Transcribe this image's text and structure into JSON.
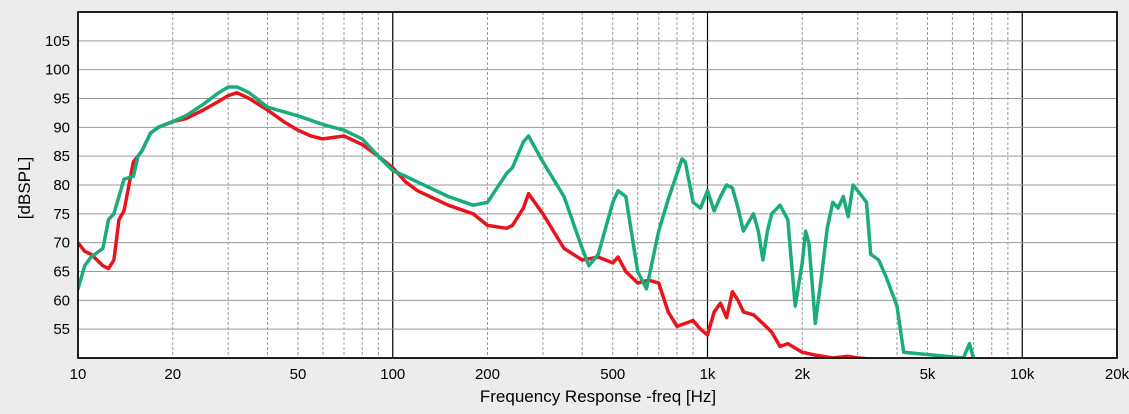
{
  "chart_data": {
    "type": "line",
    "title": "",
    "xlabel": "Frequency Response -freq [Hz]",
    "ylabel": "[dBSPL]",
    "x_scale": "log",
    "xlim": [
      10,
      20000
    ],
    "ylim": [
      50,
      110
    ],
    "grid": true,
    "x_ticks": [
      10,
      20,
      50,
      100,
      200,
      500,
      1000,
      2000,
      5000,
      10000,
      20000
    ],
    "x_tick_labels": [
      "10",
      "20",
      "50",
      "100",
      "200",
      "500",
      "1k",
      "2k",
      "5k",
      "10k",
      "20k"
    ],
    "y_ticks": [
      55,
      60,
      65,
      70,
      75,
      80,
      85,
      90,
      95,
      100,
      105
    ],
    "y_tick_labels": [
      "55",
      "60",
      "65",
      "70",
      "75",
      "80",
      "85",
      "90",
      "95",
      "100",
      "105"
    ],
    "series": [
      {
        "color": "#e8141c",
        "x": [
          10,
          10.5,
          11,
          12,
          12.5,
          13,
          13.5,
          14,
          15,
          15.5,
          16,
          17,
          18,
          20,
          22,
          25,
          28,
          30,
          32,
          35,
          40,
          45,
          50,
          55,
          60,
          70,
          80,
          90,
          100,
          110,
          120,
          150,
          180,
          200,
          230,
          240,
          260,
          270,
          300,
          350,
          400,
          450,
          500,
          520,
          550,
          600,
          650,
          700,
          750,
          800,
          850,
          900,
          950,
          1000,
          1050,
          1100,
          1150,
          1200,
          1250,
          1300,
          1400,
          1500,
          1600,
          1700,
          1800,
          2000,
          2200,
          2500,
          2800,
          3000,
          3500,
          4000
        ],
        "y": [
          70,
          68.5,
          68,
          66,
          65.5,
          67,
          74,
          75.5,
          84,
          85,
          86,
          89,
          90,
          91,
          91.5,
          93,
          94.5,
          95.5,
          96,
          95,
          93,
          91,
          89.5,
          88.5,
          88,
          88.5,
          87,
          85,
          83,
          80.5,
          79,
          76.5,
          75,
          73,
          72.5,
          73,
          76,
          78.5,
          75,
          69,
          67,
          67.5,
          66.5,
          67.5,
          65,
          63,
          63.5,
          63,
          58,
          55.5,
          56,
          56.5,
          55,
          54,
          58,
          59.5,
          57,
          61.5,
          60,
          58,
          57.5,
          56,
          54.5,
          52,
          52.5,
          51,
          50.5,
          50,
          50.3,
          50,
          49.7,
          49.5
        ]
      },
      {
        "color": "#1aac7a",
        "x": [
          10,
          10.5,
          11,
          12,
          12.5,
          13,
          14,
          15,
          15.5,
          16,
          17,
          18,
          20,
          22,
          25,
          28,
          30,
          32,
          35,
          40,
          50,
          60,
          70,
          80,
          90,
          100,
          110,
          120,
          150,
          180,
          200,
          230,
          240,
          260,
          270,
          300,
          350,
          400,
          420,
          450,
          500,
          520,
          550,
          600,
          640,
          700,
          750,
          800,
          830,
          850,
          900,
          950,
          1000,
          1050,
          1100,
          1150,
          1200,
          1250,
          1300,
          1400,
          1450,
          1500,
          1550,
          1600,
          1700,
          1800,
          1900,
          2000,
          2050,
          2100,
          2200,
          2300,
          2400,
          2500,
          2600,
          2700,
          2800,
          2900,
          3000,
          3100,
          3200,
          3300,
          3500,
          3700,
          4000,
          4200,
          6500,
          6800,
          7000
        ],
        "y": [
          62,
          66,
          67.5,
          69,
          74,
          75,
          81,
          81.5,
          85,
          86,
          89,
          90,
          91,
          92,
          94,
          96,
          97,
          97,
          96,
          93.5,
          92,
          90.5,
          89.5,
          88,
          85,
          82.5,
          81.5,
          80.5,
          78,
          76.5,
          77,
          82,
          83,
          87.5,
          88.5,
          84,
          78,
          69,
          66,
          68,
          77,
          79,
          78,
          65,
          62,
          72,
          77.5,
          82,
          84.5,
          84,
          77,
          76,
          79,
          75.5,
          78,
          80,
          79.5,
          76,
          72,
          75,
          72,
          67,
          72,
          75,
          76.5,
          74,
          59,
          66.5,
          72,
          70,
          56,
          64,
          72.5,
          77,
          76,
          78,
          74.5,
          80,
          79,
          78,
          77,
          68,
          67,
          64,
          59,
          51,
          50,
          52.5,
          50
        ]
      }
    ]
  }
}
